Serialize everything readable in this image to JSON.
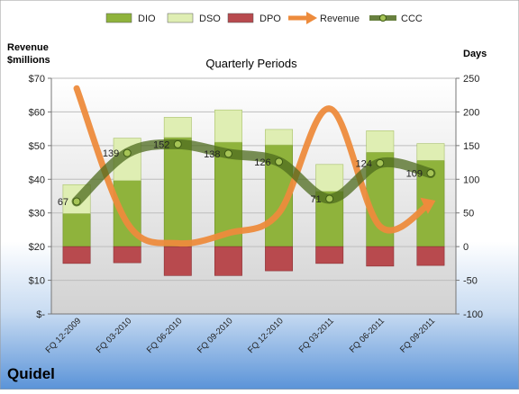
{
  "company": "Quidel",
  "chart_data": {
    "type": "bar",
    "title": "Quarterly Periods",
    "left_axis_label_line1": "Revenue",
    "left_axis_label_line2": "$millions",
    "right_axis_label": "Days",
    "categories": [
      "FQ 12-2009",
      "FQ 03-2010",
      "FQ 06-2010",
      "FQ 09-2010",
      "FQ 12-2010",
      "FQ 03-2011",
      "FQ 06-2011",
      "FQ 09-2011"
    ],
    "left_ylim": [
      0,
      70
    ],
    "left_ticks": [
      0,
      10,
      20,
      30,
      40,
      50,
      60,
      70
    ],
    "left_tick_labels": [
      "$-",
      "$10",
      "$20",
      "$30",
      "$40",
      "$50",
      "$60",
      "$70"
    ],
    "right_ylim": [
      -100,
      250
    ],
    "right_ticks": [
      -100,
      -50,
      0,
      50,
      100,
      150,
      200,
      250
    ],
    "legend_position": "top",
    "series": [
      {
        "name": "DIO",
        "kind": "stacked-bar",
        "axis": "right",
        "color": "#8fb33c",
        "values": [
          49,
          98,
          162,
          155,
          151,
          82,
          140,
          128
        ]
      },
      {
        "name": "DSO",
        "kind": "stacked-bar",
        "axis": "right",
        "color": "#dfeeb3",
        "values": [
          43,
          63,
          30,
          48,
          23,
          40,
          32,
          25
        ]
      },
      {
        "name": "DPO",
        "kind": "negative-bar",
        "axis": "right",
        "color": "#b84a4e",
        "values": [
          -25,
          -24,
          -43,
          -43,
          -36,
          -25,
          -29,
          -28
        ]
      },
      {
        "name": "Revenue",
        "kind": "line",
        "axis": "left",
        "color": "#ed8b3c",
        "values": [
          67,
          27,
          21,
          24,
          30,
          61,
          26,
          33
        ]
      },
      {
        "name": "CCC",
        "kind": "line-markers",
        "axis": "right",
        "color": "#4e6b1e",
        "values": [
          67,
          139,
          152,
          138,
          126,
          71,
          124,
          109
        ]
      }
    ],
    "data_labels": [
      "67",
      "139",
      "152",
      "138",
      "126",
      "71",
      "124",
      "109"
    ]
  }
}
